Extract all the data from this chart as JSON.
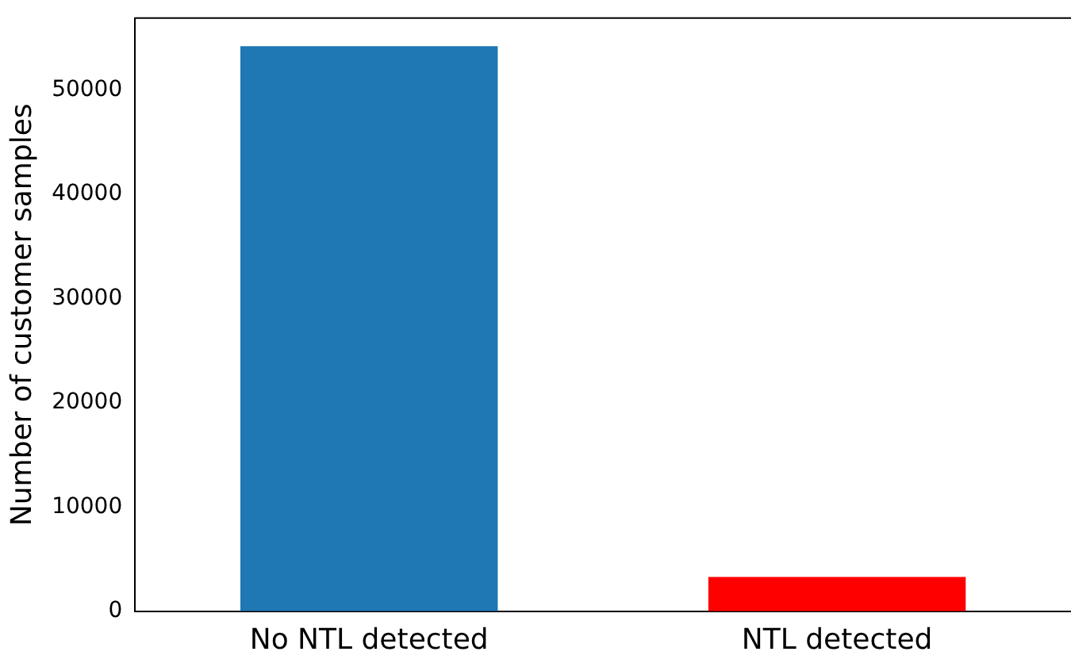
{
  "chart_data": {
    "type": "bar",
    "ylabel": "Number of customer samples",
    "categories": [
      "No NTL detected",
      "NTL detected"
    ],
    "values": [
      54200,
      3300
    ],
    "colors": [
      "#1f77b4",
      "#ff0000"
    ],
    "ylim": [
      0,
      56900
    ],
    "yticks": [
      0,
      10000,
      20000,
      30000,
      40000,
      50000
    ],
    "grid": false,
    "legend": false
  }
}
